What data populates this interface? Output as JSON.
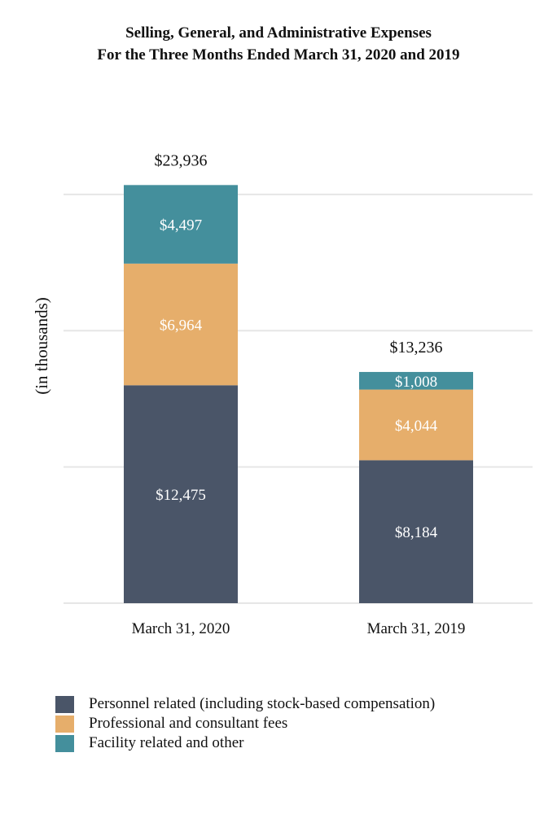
{
  "chart_data": {
    "type": "bar",
    "stacked": true,
    "title": "Selling, General, and Administrative Expenses",
    "subtitle": "For the Three Months Ended March 31, 2020 and 2019",
    "ylabel": "(in thousands)",
    "xlabel": "",
    "ylim": [
      0,
      27000
    ],
    "grid": true,
    "legend_position": "bottom-left",
    "categories": [
      "March 31, 2020",
      "March 31, 2019"
    ],
    "series": [
      {
        "name": "Personnel related (including stock-based compensation)",
        "color": "#4a5568",
        "values": [
          12475,
          8184
        ],
        "labels": [
          "$12,475",
          "$8,184"
        ]
      },
      {
        "name": "Professional and consultant fees",
        "color": "#e6ae6b",
        "values": [
          6964,
          4044
        ],
        "labels": [
          "$6,964",
          "$4,044"
        ]
      },
      {
        "name": "Facility related and other",
        "color": "#448f9c",
        "values": [
          4497,
          1008
        ],
        "labels": [
          "$4,497",
          "$1,008"
        ]
      }
    ],
    "totals": [
      23936,
      13236
    ],
    "total_labels": [
      "$23,936",
      "$13,236"
    ]
  }
}
